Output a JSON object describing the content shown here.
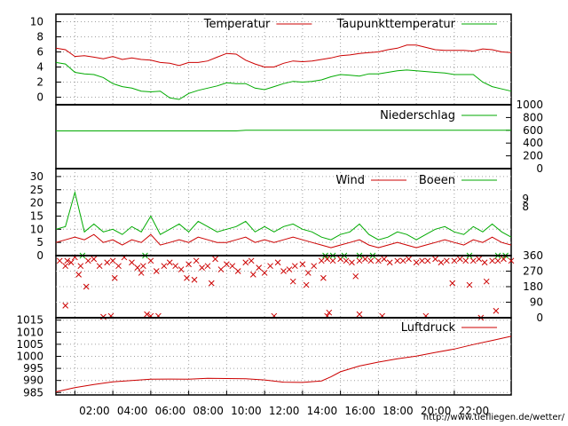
{
  "chart_data": [
    {
      "type": "line",
      "title": "",
      "ylim": [
        -1,
        11
      ],
      "yticks": [
        0,
        2,
        4,
        6,
        8,
        10
      ],
      "x_range": [
        0,
        24
      ],
      "series": [
        {
          "name": "Temperatur",
          "color": "#cc0000",
          "x": [
            0,
            0.5,
            1,
            1.5,
            2,
            2.5,
            3,
            3.5,
            4,
            4.5,
            5,
            5.5,
            6,
            6.5,
            7,
            7.5,
            8,
            8.5,
            9,
            9.5,
            10,
            10.5,
            11,
            11.5,
            12,
            12.5,
            13,
            13.5,
            14,
            14.5,
            15,
            15.5,
            16,
            16.5,
            17,
            17.5,
            18,
            18.5,
            19,
            19.5,
            20,
            20.5,
            21,
            21.5,
            22,
            22.5,
            23,
            23.5,
            24
          ],
          "values": [
            6.5,
            6.3,
            5.4,
            5.5,
            5.3,
            5.1,
            5.4,
            5.0,
            5.2,
            5.0,
            4.9,
            4.6,
            4.5,
            4.2,
            4.6,
            4.6,
            4.8,
            5.3,
            5.8,
            5.7,
            4.9,
            4.4,
            4.0,
            4.0,
            4.5,
            4.8,
            4.7,
            4.8,
            5.0,
            5.2,
            5.5,
            5.6,
            5.8,
            5.9,
            6.0,
            6.3,
            6.5,
            6.9,
            6.9,
            6.6,
            6.3,
            6.2,
            6.2,
            6.2,
            6.1,
            6.4,
            6.3,
            6.0,
            5.9
          ]
        },
        {
          "name": "Taupunkttemperatur",
          "color": "#00aa00",
          "x": [
            0,
            0.5,
            1,
            1.5,
            2,
            2.5,
            3,
            3.5,
            4,
            4.5,
            5,
            5.5,
            6,
            6.5,
            7,
            7.5,
            8,
            8.5,
            9,
            9.5,
            10,
            10.5,
            11,
            11.5,
            12,
            12.5,
            13,
            13.5,
            14,
            14.5,
            15,
            15.5,
            16,
            16.5,
            17,
            17.5,
            18,
            18.5,
            19,
            19.5,
            20,
            20.5,
            21,
            21.5,
            22,
            22.5,
            23,
            23.5,
            24
          ],
          "values": [
            4.6,
            4.4,
            3.3,
            3.1,
            3.0,
            2.6,
            1.8,
            1.4,
            1.2,
            0.8,
            0.7,
            0.8,
            -0.1,
            -0.3,
            0.5,
            0.9,
            1.2,
            1.5,
            1.9,
            1.8,
            1.8,
            1.2,
            1.0,
            1.4,
            1.8,
            2.1,
            2.0,
            2.1,
            2.3,
            2.7,
            3.0,
            2.9,
            2.8,
            3.1,
            3.1,
            3.3,
            3.5,
            3.6,
            3.5,
            3.4,
            3.3,
            3.2,
            3.0,
            3.0,
            3.0,
            2.0,
            1.4,
            1.1,
            0.8
          ]
        }
      ]
    },
    {
      "type": "line",
      "ylim": [
        0,
        1000
      ],
      "yticks": [
        0,
        200,
        400,
        600,
        800,
        1000
      ],
      "x_range": [
        0,
        24
      ],
      "series": [
        {
          "name": "Niederschlag",
          "color": "#00aa00",
          "x": [
            0,
            9.5,
            10,
            24
          ],
          "values": [
            590,
            590,
            600,
            600
          ]
        }
      ]
    },
    {
      "type": "line",
      "ylim": [
        0,
        33
      ],
      "yticks": [
        0,
        5,
        10,
        15,
        20,
        25,
        30
      ],
      "right_ticks": [
        "9",
        "8"
      ],
      "x_range": [
        0,
        24
      ],
      "series": [
        {
          "name": "Wind",
          "color": "#cc0000",
          "x": [
            0,
            0.5,
            1,
            1.5,
            2,
            2.5,
            3,
            3.5,
            4,
            4.5,
            5,
            5.5,
            6,
            6.5,
            7,
            7.5,
            8,
            8.5,
            9,
            9.5,
            10,
            10.5,
            11,
            11.5,
            12,
            12.5,
            13,
            13.5,
            14,
            14.5,
            15,
            15.5,
            16,
            16.5,
            17,
            17.5,
            18,
            18.5,
            19,
            19.5,
            20,
            20.5,
            21,
            21.5,
            22,
            22.5,
            23,
            23.5,
            24
          ],
          "values": [
            5,
            6,
            7,
            6,
            8,
            5,
            6,
            4,
            6,
            5,
            8,
            4,
            5,
            6,
            5,
            7,
            6,
            5,
            5,
            6,
            7,
            5,
            6,
            5,
            6,
            7,
            6,
            5,
            4,
            3,
            4,
            5,
            6,
            4,
            3,
            4,
            5,
            4,
            3,
            4,
            5,
            6,
            5,
            4,
            6,
            5,
            7,
            5,
            4
          ]
        },
        {
          "name": "Boeen",
          "color": "#00aa00",
          "x": [
            0,
            0.5,
            1,
            1.5,
            2,
            2.5,
            3,
            3.5,
            4,
            4.5,
            5,
            5.5,
            6,
            6.5,
            7,
            7.5,
            8,
            8.5,
            9,
            9.5,
            10,
            10.5,
            11,
            11.5,
            12,
            12.5,
            13,
            13.5,
            14,
            14.5,
            15,
            15.5,
            16,
            16.5,
            17,
            17.5,
            18,
            18.5,
            19,
            19.5,
            20,
            20.5,
            21,
            21.5,
            22,
            22.5,
            23,
            23.5,
            24
          ],
          "values": [
            10,
            11,
            24,
            9,
            12,
            9,
            10,
            8,
            11,
            9,
            15,
            8,
            10,
            12,
            9,
            13,
            11,
            9,
            10,
            11,
            13,
            9,
            11,
            9,
            11,
            12,
            10,
            9,
            7,
            6,
            8,
            9,
            12,
            8,
            6,
            7,
            9,
            8,
            6,
            8,
            10,
            11,
            9,
            8,
            11,
            9,
            12,
            9,
            7
          ]
        }
      ]
    },
    {
      "type": "scatter",
      "ylim": [
        0,
        360
      ],
      "yticks": [
        0,
        90,
        180,
        270,
        360
      ],
      "x_range": [
        0,
        24
      ],
      "series": [
        {
          "name": "",
          "color": "#cc0000",
          "marker": "x",
          "x": [
            0.2,
            0.5,
            0.8,
            1.0,
            1.3,
            1.7,
            2.0,
            2.3,
            2.7,
            3.0,
            3.3,
            3.6,
            4.0,
            4.3,
            4.6,
            5.0,
            5.3,
            5.7,
            6.0,
            6.3,
            6.6,
            7.0,
            7.4,
            7.7,
            8.0,
            8.4,
            8.7,
            9.0,
            9.3,
            9.6,
            10.0,
            10.3,
            10.7,
            11.0,
            11.3,
            11.7,
            12.0,
            12.3,
            12.6,
            13.0,
            13.3,
            13.6,
            14.0,
            14.3,
            14.6,
            15.0,
            15.3,
            15.6,
            16.0,
            16.3,
            16.6,
            17.0,
            17.3,
            17.6,
            18.0,
            18.3,
            18.6,
            19.0,
            19.3,
            19.6,
            20.0,
            20.3,
            20.6,
            21.0,
            21.3,
            21.6,
            22.0,
            22.3,
            22.6,
            23.0,
            23.3,
            23.6,
            24.0,
            1.2,
            3.1,
            4.5,
            6.9,
            8.2,
            10.4,
            12.5,
            14.1,
            15.8,
            20.9,
            22.7,
            0.5,
            2.5,
            4.8,
            14.4,
            16.0,
            23.2,
            1.6,
            7.3,
            13.2,
            21.8,
            0.6,
            2.9,
            5.0,
            5.4,
            11.5,
            14.3,
            17.2,
            19.5,
            22.4
          ],
          "values": [
            330,
            300,
            320,
            350,
            300,
            330,
            340,
            300,
            320,
            330,
            300,
            350,
            320,
            290,
            300,
            330,
            270,
            300,
            320,
            300,
            280,
            310,
            330,
            290,
            300,
            340,
            280,
            310,
            300,
            270,
            320,
            330,
            290,
            260,
            300,
            320,
            270,
            280,
            300,
            310,
            260,
            300,
            330,
            340,
            330,
            340,
            330,
            320,
            330,
            340,
            330,
            330,
            340,
            320,
            330,
            330,
            340,
            320,
            330,
            330,
            340,
            320,
            330,
            330,
            340,
            330,
            330,
            340,
            320,
            330,
            330,
            340,
            330,
            250,
            230,
            260,
            230,
            200,
            250,
            210,
            230,
            240,
            200,
            210,
            70,
            5,
            20,
            30,
            20,
            40,
            180,
            220,
            190,
            190,
            330,
            10,
            10,
            10,
            10,
            10,
            10,
            10,
            0
          ]
        },
        {
          "name": "",
          "color": "#00aa00",
          "marker": "x",
          "x": [
            1.4,
            4.7,
            14.2,
            14.6,
            15.2,
            16.0,
            16.7,
            21.8,
            23.3,
            23.7
          ],
          "values": [
            360,
            360,
            360,
            360,
            360,
            360,
            360,
            360,
            360,
            360
          ]
        }
      ]
    },
    {
      "type": "line",
      "ylim": [
        984,
        1016
      ],
      "yticks": [
        985,
        990,
        995,
        1000,
        1005,
        1010,
        1015
      ],
      "x_range": [
        0,
        24
      ],
      "xticks": [
        1,
        3,
        5,
        7,
        9,
        11,
        13,
        15,
        17,
        19,
        21
      ],
      "xtick_labels": [
        "02:00",
        "04:00",
        "06:00",
        "08:00",
        "10:00",
        "12:00",
        "14:00",
        "16:00",
        "18:00",
        "20:00",
        "22:00"
      ],
      "series": [
        {
          "name": "Luftdruck",
          "color": "#cc0000",
          "x": [
            0,
            1,
            2,
            3,
            4,
            5,
            6,
            7,
            8,
            9,
            10,
            11,
            12,
            13,
            14,
            14.5,
            15,
            16,
            17,
            18,
            19,
            20,
            21,
            22,
            23,
            24
          ],
          "values": [
            985.3,
            987.0,
            988.3,
            989.4,
            990.0,
            990.5,
            990.6,
            990.5,
            990.9,
            990.8,
            990.7,
            990.2,
            989.3,
            989.2,
            989.8,
            991.5,
            993.6,
            996.0,
            997.6,
            999.0,
            1000.1,
            1001.6,
            1003.0,
            1004.9,
            1006.6,
            1008.3
          ]
        }
      ]
    }
  ],
  "footer": {
    "url": "http://www.tiefliegen.de/wetter/"
  }
}
